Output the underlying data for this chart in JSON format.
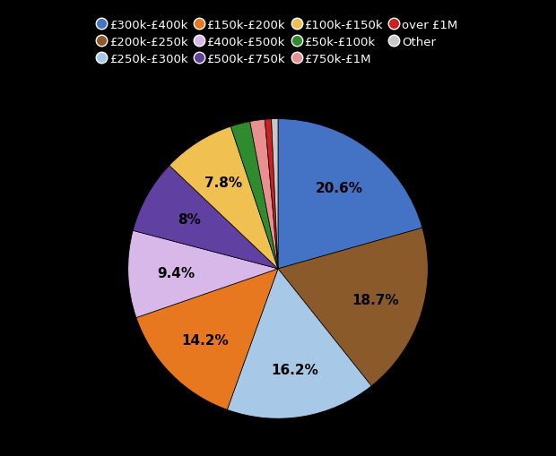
{
  "labels": [
    "£300k-£400k",
    "£200k-£250k",
    "£250k-£300k",
    "£150k-£200k",
    "£400k-£500k",
    "£500k-£750k",
    "£100k-£150k",
    "£50k-£100k",
    "£750k-£1M",
    "over £1M",
    "Other"
  ],
  "values": [
    20.6,
    18.7,
    16.2,
    14.2,
    9.4,
    8.0,
    7.8,
    2.1,
    1.6,
    0.7,
    0.7
  ],
  "colors": [
    "#4472c4",
    "#8B5A2B",
    "#a8c8e8",
    "#e87820",
    "#d8b8e8",
    "#6040a0",
    "#f0c050",
    "#2e8b2e",
    "#e89090",
    "#cc2020",
    "#c8c8c8"
  ],
  "pct_labels": [
    "20.6%",
    "18.7%",
    "16.2%",
    "14.2%",
    "9.4%",
    "8%",
    "7.8%",
    "",
    "",
    "",
    ""
  ],
  "background_color": "#000000",
  "text_color": "#000000",
  "legend_text_color": "#ffffff",
  "startangle": 90,
  "figsize": [
    6.2,
    5.1
  ],
  "dpi": 100
}
